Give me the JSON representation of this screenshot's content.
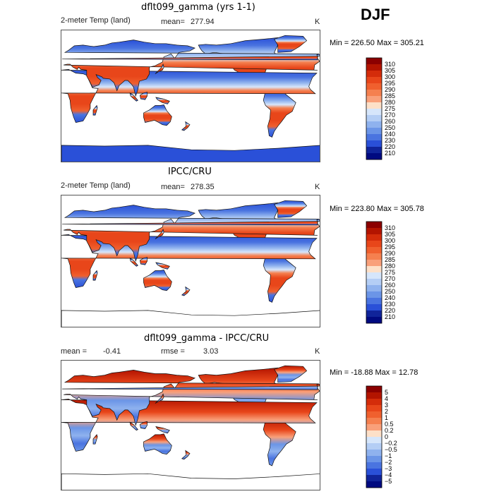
{
  "season": "DJF",
  "panels": [
    {
      "title": "dflt099_gamma (yrs 1-1)",
      "left_label": "2-meter Temp (land)",
      "stat_label": "mean=",
      "stat_value": "277.94",
      "unit": "K",
      "minmax": "Min = 226.50 Max = 305.21",
      "map_style": "model"
    },
    {
      "title": "IPCC/CRU",
      "left_label": "2-meter Temp (land)",
      "stat_label": "mean=",
      "stat_value": "278.35",
      "unit": "K",
      "minmax": "Min = 223.80 Max = 305.78",
      "map_style": "obs"
    },
    {
      "title": "dflt099_gamma - IPCC/CRU",
      "left_label": "mean =",
      "left_value": "-0.41",
      "stat_label": "rmse =",
      "stat_value": "3.03",
      "unit": "K",
      "minmax": "Min = -18.88 Max = 12.78",
      "map_style": "diff"
    }
  ],
  "chart_data": [
    {
      "type": "heatmap",
      "title": "dflt099_gamma (yrs 1-1)",
      "variable": "2-meter Temp (land)",
      "units": "K",
      "mean": 277.94,
      "min": 226.5,
      "max": 305.21,
      "colorbar_levels": [
        "310",
        "305",
        "300",
        "295",
        "290",
        "285",
        "280",
        "275",
        "270",
        "260",
        "250",
        "240",
        "230",
        "220",
        "210"
      ],
      "colorbar_colors": [
        "#8b0000",
        "#b31400",
        "#d42c0a",
        "#e8461a",
        "#f0602e",
        "#f5804f",
        "#f9a07a",
        "#fde0c8",
        "#d6e6fb",
        "#b4cef5",
        "#8fb2ee",
        "#6b95e7",
        "#4a74e0",
        "#2a50d8",
        "#10249a",
        "#000a80"
      ]
    },
    {
      "type": "heatmap",
      "title": "IPCC/CRU",
      "variable": "2-meter Temp (land)",
      "units": "K",
      "mean": 278.35,
      "min": 223.8,
      "max": 305.78,
      "colorbar_levels": [
        "310",
        "305",
        "300",
        "295",
        "290",
        "285",
        "280",
        "275",
        "270",
        "260",
        "250",
        "240",
        "230",
        "220",
        "210"
      ],
      "colorbar_colors": [
        "#8b0000",
        "#b31400",
        "#d42c0a",
        "#e8461a",
        "#f0602e",
        "#f5804f",
        "#f9a07a",
        "#fde0c8",
        "#d6e6fb",
        "#b4cef5",
        "#8fb2ee",
        "#6b95e7",
        "#4a74e0",
        "#2a50d8",
        "#10249a",
        "#000a80"
      ]
    },
    {
      "type": "heatmap",
      "title": "dflt099_gamma - IPCC/CRU",
      "units": "K",
      "mean": -0.41,
      "rmse": 3.03,
      "min": -18.88,
      "max": 12.78,
      "colorbar_levels": [
        "5",
        "4",
        "3",
        "2",
        "1",
        "0.5",
        "0.2",
        "0",
        "−0.2",
        "−0.5",
        "−1",
        "−2",
        "−3",
        "−4",
        "−5"
      ],
      "colorbar_colors": [
        "#8b0000",
        "#b31400",
        "#d42c0a",
        "#e8461a",
        "#f0602e",
        "#f5804f",
        "#f9a07a",
        "#fde0c8",
        "#d6e6fb",
        "#b4cef5",
        "#8fb2ee",
        "#6b95e7",
        "#4a74e0",
        "#2a50d8",
        "#10249a",
        "#000a80"
      ]
    }
  ]
}
